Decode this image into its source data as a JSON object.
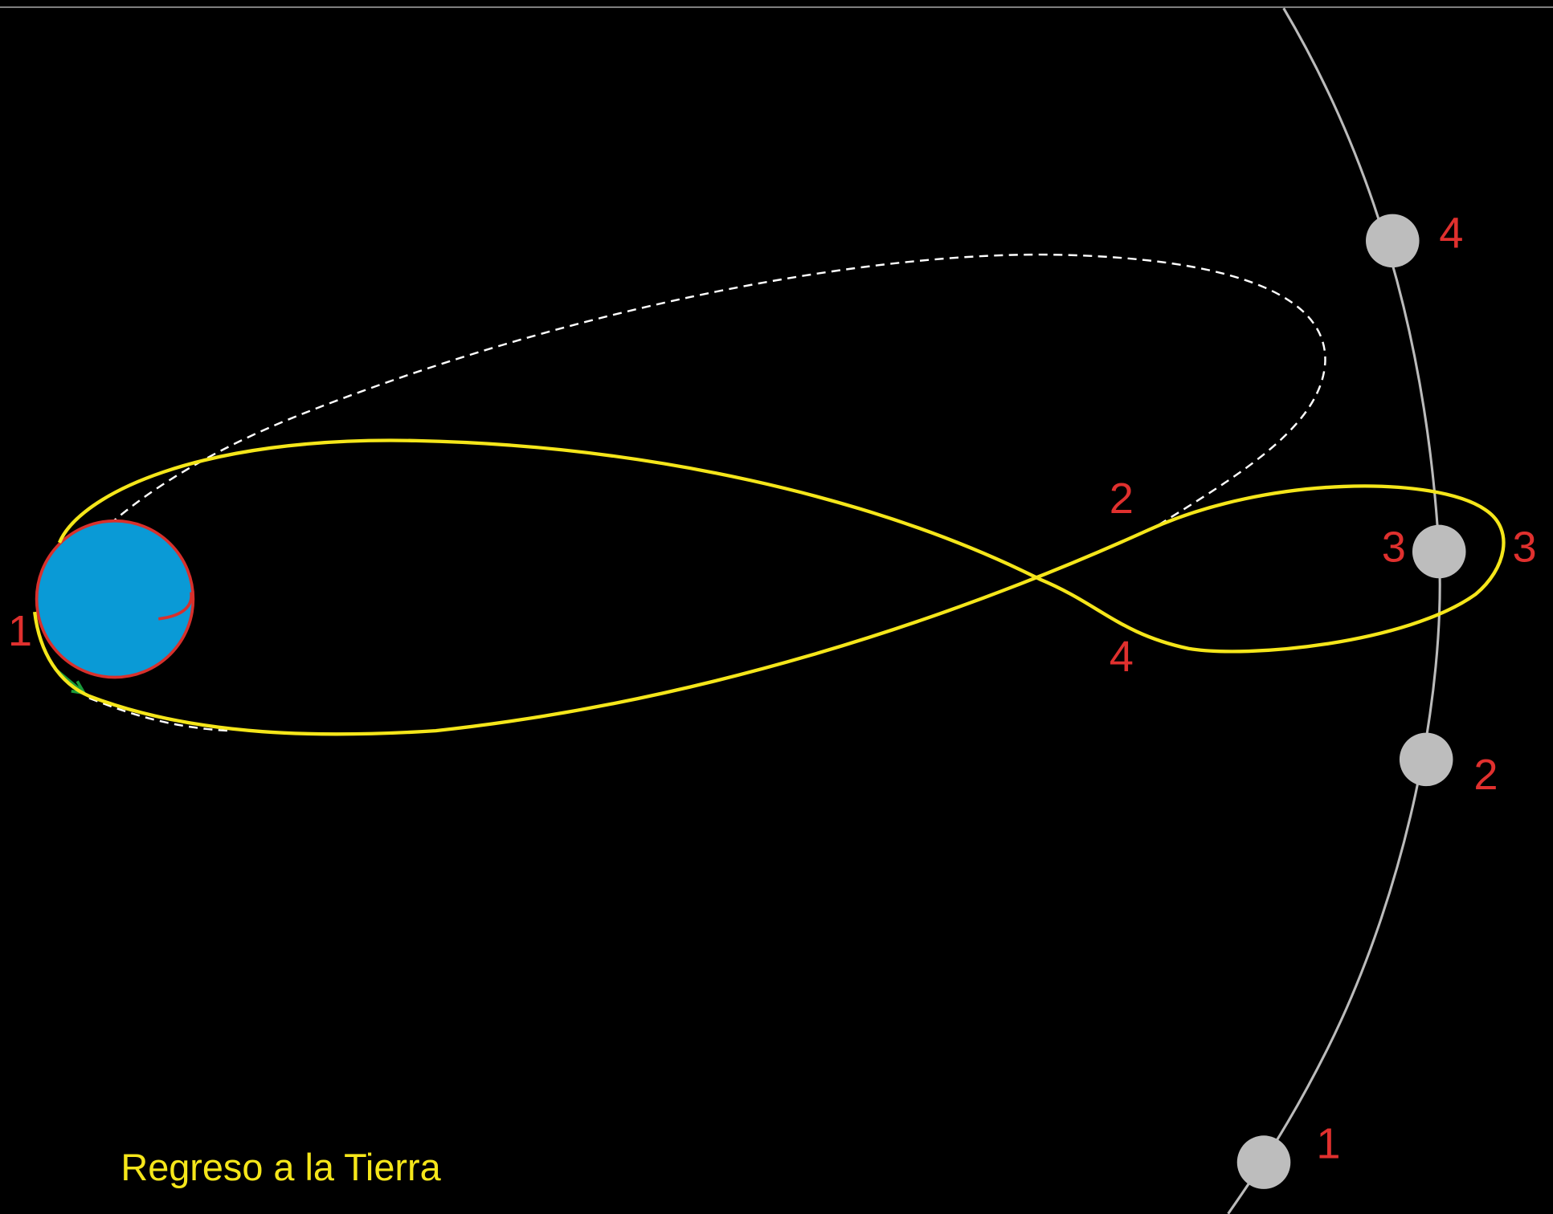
{
  "caption": "Regreso a la Tierra",
  "moon_labels": [
    "1",
    "2",
    "3",
    "4"
  ],
  "trajectory_labels": [
    "1",
    "2",
    "3",
    "4"
  ]
}
